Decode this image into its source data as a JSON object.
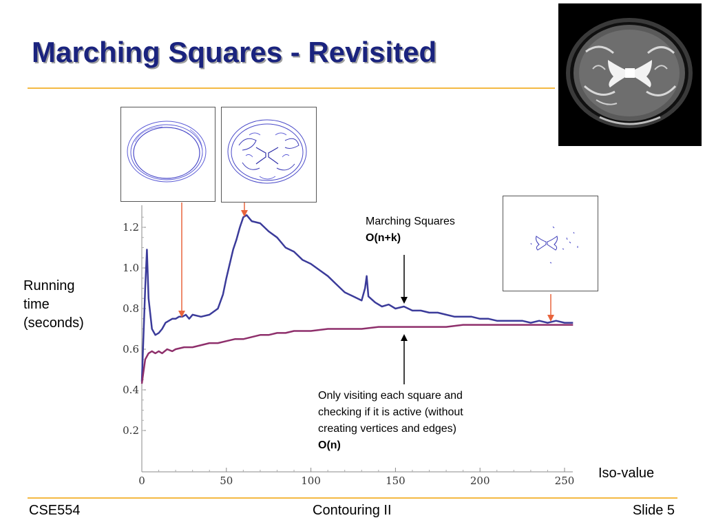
{
  "slide": {
    "title": "Marching Squares - Revisited",
    "footer_left": "CSE554",
    "footer_center": "Contouring II",
    "footer_right": "Slide 5"
  },
  "annotations": {
    "marching_squares_label": "Marching Squares",
    "marching_squares_complexity": "O(n+k)",
    "visit_label_line1": "Only visiting each square and",
    "visit_label_line2": "checking if it is active (without",
    "visit_label_line3": "creating vertices and edges)",
    "visit_complexity": "O(n)"
  },
  "colors": {
    "title": "#1a237e",
    "rule": "#f4b942",
    "series_ms": "#3b3b9a",
    "series_visit": "#8e2f6b",
    "pointer_arrow": "#e8643c",
    "annotation_arrow": "#000000"
  },
  "chart_data": {
    "type": "line",
    "title": "",
    "xlabel": "Iso-value",
    "ylabel_lines": [
      "Running",
      "time",
      "(seconds)"
    ],
    "xlim": [
      0,
      255
    ],
    "ylim": [
      0.4,
      1.3
    ],
    "x_ticks": [
      0,
      50,
      100,
      150,
      200,
      250
    ],
    "y_ticks": [
      0.2,
      0.4,
      0.6,
      0.8,
      1.0,
      1.2
    ],
    "y_tick_labels": [
      "0.2",
      "0.4",
      "0.6",
      "0.8",
      "1.0",
      "1.2"
    ],
    "grid": false,
    "series": [
      {
        "x": [
          0,
          2,
          3,
          4,
          6,
          8,
          10,
          12,
          14,
          16,
          18,
          20,
          22,
          24,
          26,
          28,
          30,
          35,
          40,
          45,
          48,
          50,
          52,
          54,
          56,
          58,
          60,
          62,
          65,
          70,
          75,
          80,
          85,
          90,
          95,
          100,
          105,
          110,
          115,
          120,
          125,
          130,
          132,
          133,
          134,
          138,
          142,
          146,
          150,
          155,
          160,
          165,
          170,
          175,
          180,
          185,
          190,
          195,
          200,
          205,
          210,
          215,
          220,
          225,
          230,
          235,
          240,
          245,
          250,
          255
        ],
        "values": [
          0.44,
          0.9,
          1.09,
          0.85,
          0.7,
          0.67,
          0.68,
          0.7,
          0.73,
          0.74,
          0.75,
          0.75,
          0.76,
          0.76,
          0.77,
          0.75,
          0.77,
          0.76,
          0.77,
          0.8,
          0.87,
          0.95,
          1.02,
          1.09,
          1.14,
          1.2,
          1.25,
          1.26,
          1.23,
          1.22,
          1.18,
          1.15,
          1.1,
          1.08,
          1.04,
          1.02,
          0.99,
          0.96,
          0.92,
          0.88,
          0.86,
          0.84,
          0.9,
          0.96,
          0.86,
          0.83,
          0.81,
          0.82,
          0.8,
          0.81,
          0.79,
          0.79,
          0.78,
          0.78,
          0.77,
          0.76,
          0.76,
          0.76,
          0.75,
          0.75,
          0.74,
          0.74,
          0.74,
          0.74,
          0.73,
          0.74,
          0.73,
          0.74,
          0.73,
          0.73
        ]
      },
      {
        "x": [
          0,
          2,
          4,
          6,
          8,
          10,
          12,
          15,
          18,
          20,
          25,
          30,
          35,
          40,
          45,
          50,
          55,
          60,
          65,
          70,
          75,
          80,
          85,
          90,
          95,
          100,
          110,
          120,
          130,
          140,
          150,
          160,
          170,
          180,
          190,
          200,
          210,
          220,
          230,
          240,
          250,
          255
        ],
        "values": [
          0.43,
          0.55,
          0.58,
          0.59,
          0.58,
          0.59,
          0.58,
          0.6,
          0.59,
          0.6,
          0.61,
          0.61,
          0.62,
          0.63,
          0.63,
          0.64,
          0.65,
          0.65,
          0.66,
          0.67,
          0.67,
          0.68,
          0.68,
          0.69,
          0.69,
          0.69,
          0.7,
          0.7,
          0.7,
          0.71,
          0.71,
          0.71,
          0.71,
          0.71,
          0.72,
          0.72,
          0.72,
          0.72,
          0.72,
          0.72,
          0.72,
          0.72
        ]
      }
    ]
  }
}
